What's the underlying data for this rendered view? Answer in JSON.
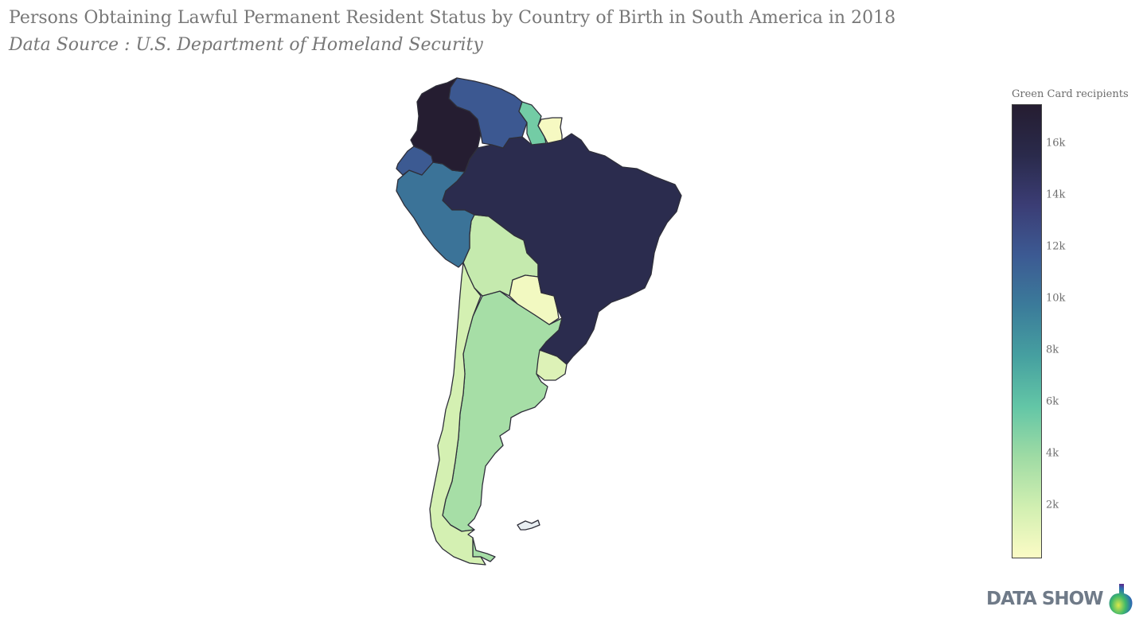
{
  "title": "Persons Obtaining Lawful Permanent Resident Status by Country of Birth in South America in 2018",
  "subtitle": "Data Source : U.S. Department of Homeland Security",
  "colorbar": {
    "title": "Green Card recipients",
    "ticks": [
      "2k",
      "4k",
      "6k",
      "8k",
      "10k",
      "12k",
      "14k",
      "16k"
    ],
    "tick_values": [
      2000,
      4000,
      6000,
      8000,
      10000,
      12000,
      14000,
      16000
    ],
    "range": [
      0,
      17500
    ],
    "colorscale": [
      "#fbfbc5",
      "#d1efb1",
      "#9fdba4",
      "#63c6a6",
      "#46a0a0",
      "#3b7b9a",
      "#3c5a93",
      "#3b3d75",
      "#2a2a4b",
      "#251d31"
    ]
  },
  "chart_data": {
    "type": "choropleth",
    "scope": "south america",
    "countries": [
      {
        "name": "Colombia",
        "value": 17500
      },
      {
        "name": "Brazil",
        "value": 15400
      },
      {
        "name": "Venezuela",
        "value": 11800
      },
      {
        "name": "Ecuador",
        "value": 11700
      },
      {
        "name": "Peru",
        "value": 10200
      },
      {
        "name": "Guyana",
        "value": 5300
      },
      {
        "name": "Argentina",
        "value": 3600
      },
      {
        "name": "Bolivia",
        "value": 2400
      },
      {
        "name": "Chile",
        "value": 1800
      },
      {
        "name": "Uruguay",
        "value": 1400
      },
      {
        "name": "Paraguay",
        "value": 400
      },
      {
        "name": "Suriname",
        "value": 250
      },
      {
        "name": "Falkland Islands",
        "value": null
      }
    ]
  },
  "logo": {
    "text": "DATA SHOW",
    "icon": "datashow-logo-icon"
  }
}
